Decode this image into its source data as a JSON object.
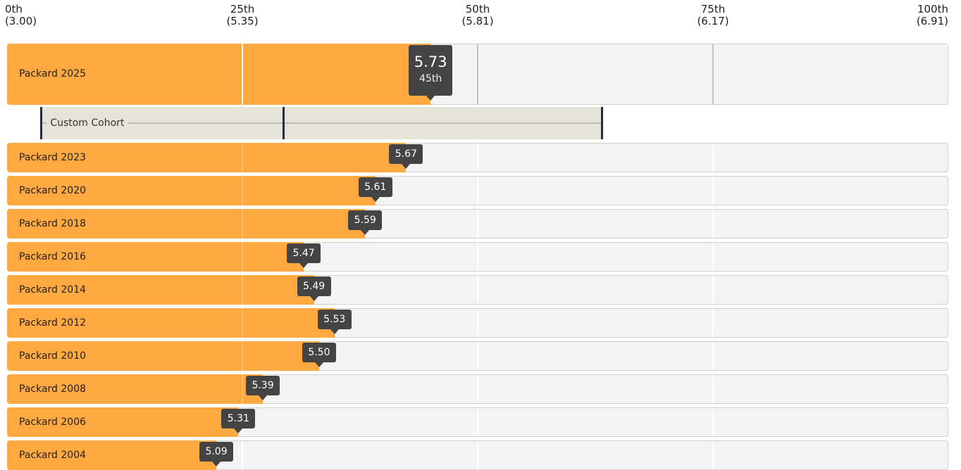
{
  "chart_data": {
    "type": "bar",
    "orientation": "horizontal",
    "color": "#ffa940",
    "xticks": [
      {
        "value": 3.0,
        "label": "0th\n(3.00)"
      },
      {
        "value": 5.35,
        "label": "25th\n(5.35)"
      },
      {
        "value": 5.81,
        "label": "50th\n(5.81)"
      },
      {
        "value": 6.17,
        "label": "75th\n(6.17)"
      },
      {
        "value": 6.91,
        "label": "100th\n(6.91)"
      }
    ],
    "xlim": [
      3.0,
      6.91
    ],
    "highlight": {
      "name": "Packard 2025",
      "value": 5.73,
      "percentile": 45,
      "percentile_label": "45th"
    },
    "cohort": {
      "label": "Custom Cohort",
      "min": 3.34,
      "median": 5.43,
      "max": 6.0
    },
    "categories": [
      "Packard 2023",
      "Packard 2020",
      "Packard 2018",
      "Packard 2016",
      "Packard 2014",
      "Packard 2012",
      "Packard 2010",
      "Packard 2008",
      "Packard 2006",
      "Packard 2004"
    ],
    "values": [
      5.67,
      5.61,
      5.59,
      5.47,
      5.49,
      5.53,
      5.5,
      5.39,
      5.31,
      5.09
    ],
    "value_labels": [
      "5.67",
      "5.61",
      "5.59",
      "5.47",
      "5.49",
      "5.53",
      "5.50",
      "5.39",
      "5.31",
      "5.09"
    ]
  }
}
